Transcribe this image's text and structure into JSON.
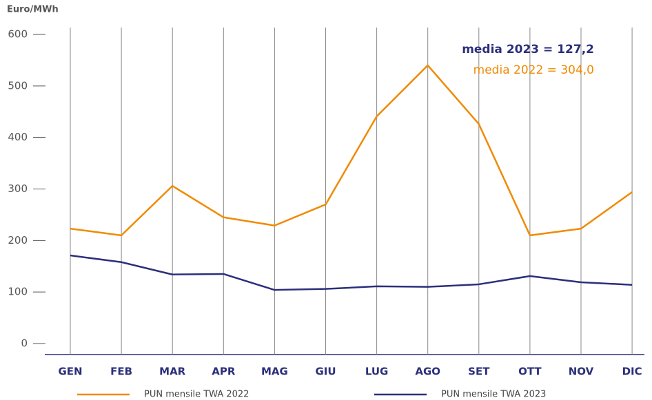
{
  "chart_data": {
    "type": "line",
    "y_label": "Euro/MWh",
    "categories": [
      "GEN",
      "FEB",
      "MAR",
      "APR",
      "MAG",
      "GIU",
      "LUG",
      "AGO",
      "SET",
      "OTT",
      "NOV",
      "DIC"
    ],
    "series": [
      {
        "name": "PUN mensile TWA 2022",
        "color": "#f08a00",
        "values": [
          223,
          210,
          306,
          245,
          229,
          270,
          441,
          540,
          426,
          210,
          223,
          294
        ]
      },
      {
        "name": "PUN mensile TWA 2023",
        "color": "#2b2f7a",
        "values": [
          171,
          158,
          134,
          135,
          104,
          106,
          111,
          110,
          115,
          131,
          119,
          114
        ]
      }
    ],
    "annotations": [
      {
        "text": "media 2023 = 127,2",
        "color": "#2b2f7a"
      },
      {
        "text": "media 2022 = 304,0",
        "color": "#f08a00"
      }
    ],
    "ylim": [
      0,
      600
    ],
    "yticks": [
      0,
      100,
      200,
      300,
      400,
      500,
      600
    ],
    "grid": true
  }
}
